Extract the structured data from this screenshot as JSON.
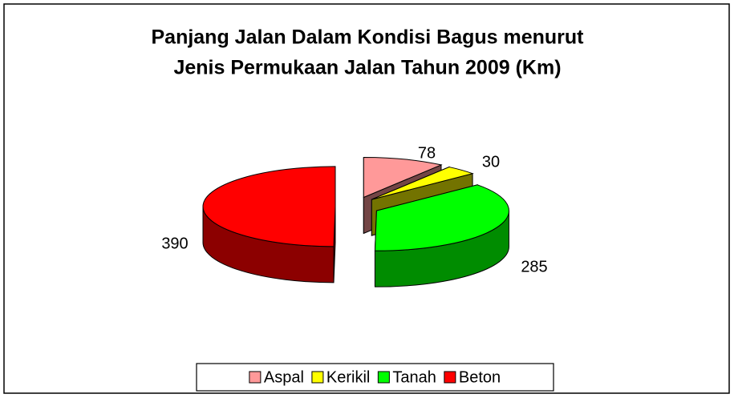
{
  "chart_data": {
    "type": "pie3d",
    "title": [
      "Panjang Jalan  Dalam Kondisi Bagus menurut",
      "Jenis Permukaan Jalan Tahun 2009 (Km)"
    ],
    "categories": [
      "Aspal",
      "Kerikil",
      "Tanah",
      "Beton"
    ],
    "values": [
      78,
      30,
      285,
      390
    ],
    "colors": [
      "#ff9999",
      "#ffff00",
      "#00ff00",
      "#ff0000"
    ],
    "legend": "bottom"
  }
}
